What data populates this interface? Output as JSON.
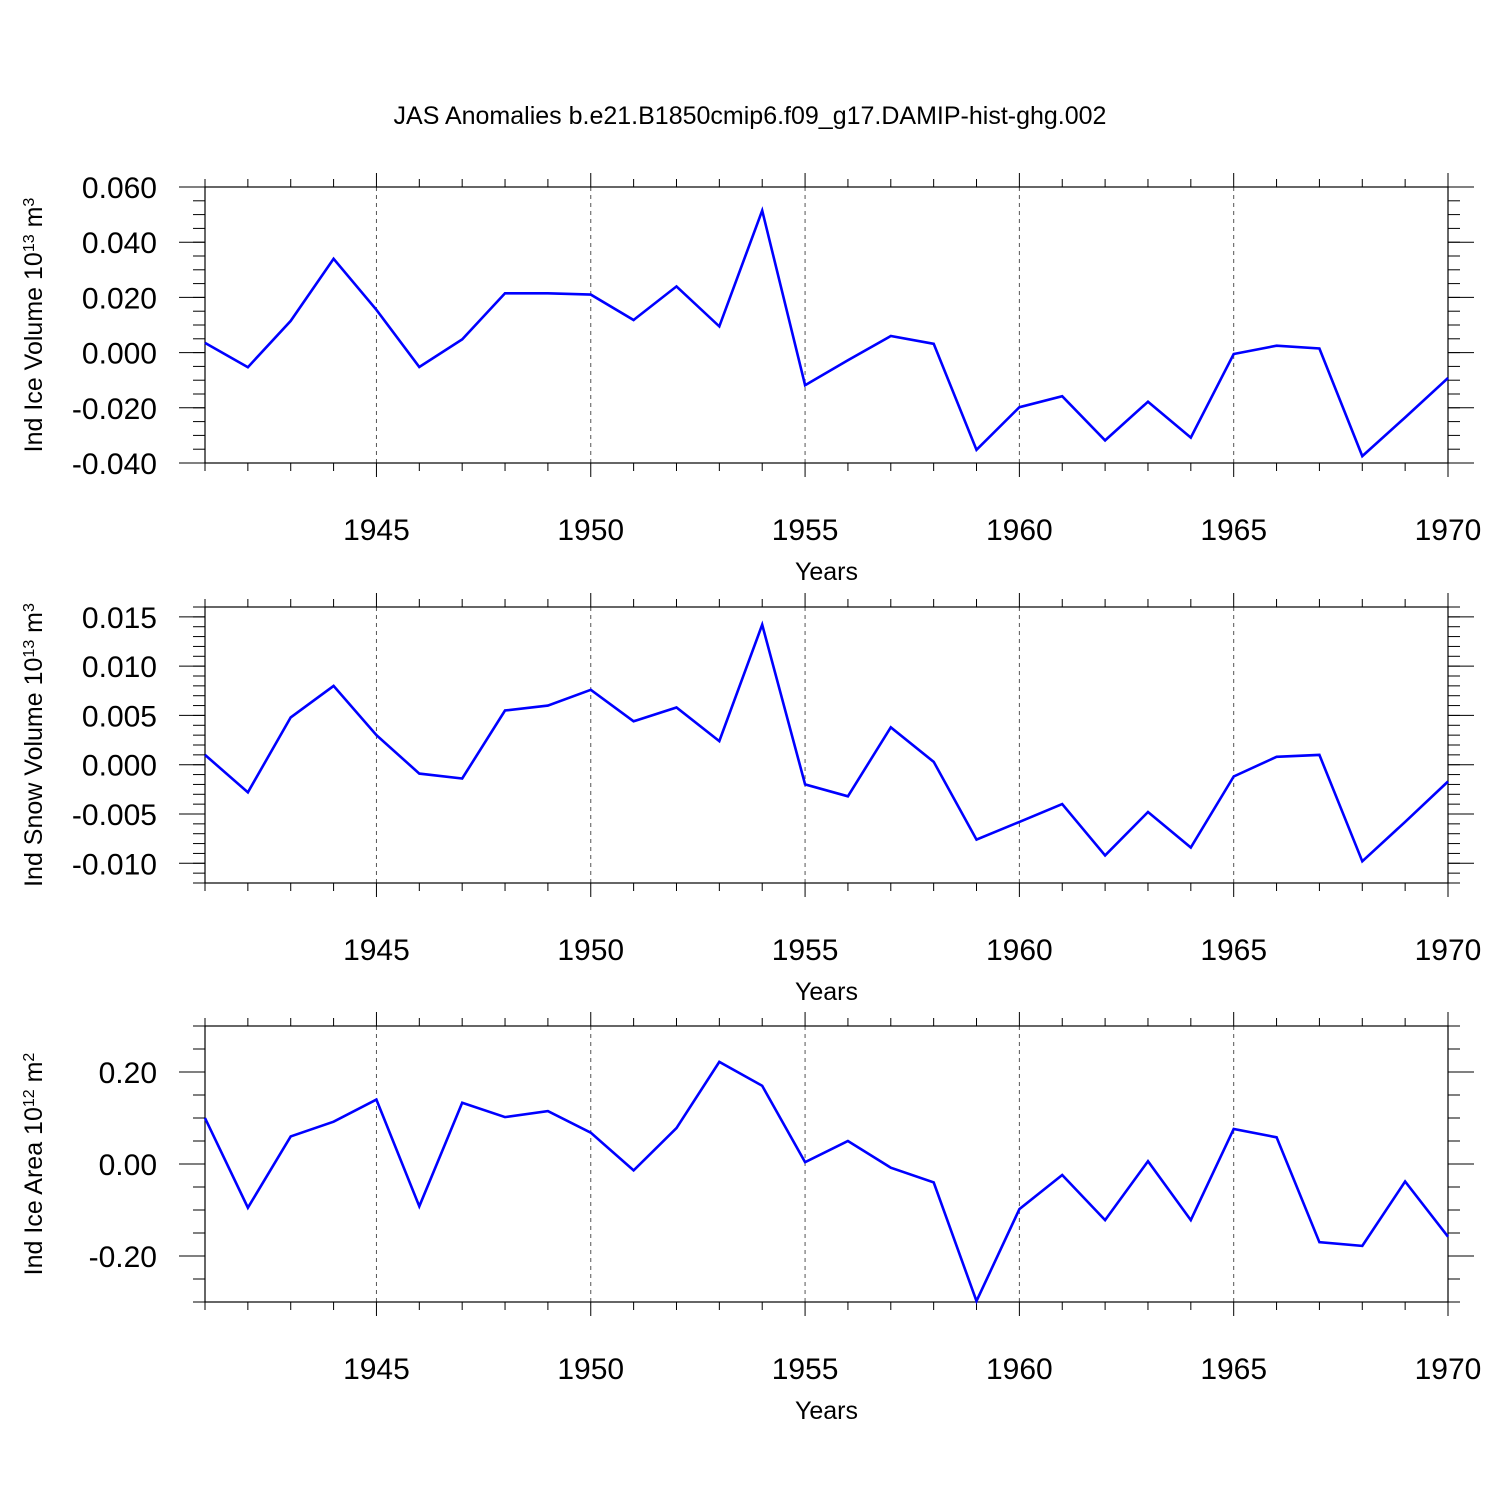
{
  "title": "JAS Anomalies b.e21.B1850cmip6.f09_g17.DAMIP-hist-ghg.002",
  "chart_data": [
    {
      "type": "line",
      "ylabel_main": "Ind Ice Volume 10",
      "ylabel_exp": "13",
      "ylabel_unit": "m",
      "ylabel_unit_exp": "3",
      "xlabel": "Years",
      "xlim": [
        1941,
        1970
      ],
      "ylim": [
        -0.04,
        0.06
      ],
      "yticks": [
        -0.04,
        -0.02,
        0.0,
        0.02,
        0.04,
        0.06
      ],
      "ytick_labels": [
        "-0.040",
        "-0.020",
        "0.000",
        "0.020",
        "0.040",
        "0.060"
      ],
      "ytick_minor_step": 0.005,
      "xticks": [
        1945,
        1950,
        1955,
        1960,
        1965,
        1970
      ],
      "xtick_labels": [
        "1945",
        "1950",
        "1955",
        "1960",
        "1965",
        "1970"
      ],
      "grid": "vertical dashed at major x ticks",
      "line_color": "#0000ff",
      "x": [
        1941,
        1942,
        1943,
        1944,
        1945,
        1946,
        1947,
        1948,
        1949,
        1950,
        1951,
        1952,
        1953,
        1954,
        1955,
        1956,
        1957,
        1958,
        1959,
        1960,
        1961,
        1962,
        1963,
        1964,
        1965,
        1966,
        1967,
        1968,
        1969,
        1970
      ],
      "values": [
        0.0035,
        -0.0053,
        0.0115,
        0.034,
        0.0155,
        -0.0052,
        0.0048,
        0.0215,
        0.0215,
        0.021,
        0.0118,
        0.024,
        0.0095,
        0.0515,
        -0.0118,
        -0.0028,
        0.006,
        0.0032,
        -0.0352,
        -0.0198,
        -0.0158,
        -0.0318,
        -0.0178,
        -0.0308,
        -0.0005,
        0.0025,
        0.0015,
        -0.0375,
        -0.0235,
        -0.0092
      ]
    },
    {
      "type": "line",
      "ylabel_main": "Ind Snow Volume 10",
      "ylabel_exp": "13",
      "ylabel_unit": "m",
      "ylabel_unit_exp": "3",
      "xlabel": "Years",
      "xlim": [
        1941,
        1970
      ],
      "ylim": [
        -0.012,
        0.016
      ],
      "yticks": [
        -0.01,
        -0.005,
        0.0,
        0.005,
        0.01,
        0.015
      ],
      "ytick_labels": [
        "-0.010",
        "-0.005",
        "0.000",
        "0.005",
        "0.010",
        "0.015"
      ],
      "ytick_minor_step": 0.001,
      "xticks": [
        1945,
        1950,
        1955,
        1960,
        1965,
        1970
      ],
      "xtick_labels": [
        "1945",
        "1950",
        "1955",
        "1960",
        "1965",
        "1970"
      ],
      "grid": "vertical dashed at major x ticks",
      "line_color": "#0000ff",
      "x": [
        1941,
        1942,
        1943,
        1944,
        1945,
        1946,
        1947,
        1948,
        1949,
        1950,
        1951,
        1952,
        1953,
        1954,
        1955,
        1956,
        1957,
        1958,
        1959,
        1960,
        1961,
        1962,
        1963,
        1964,
        1965,
        1966,
        1967,
        1968,
        1969,
        1970
      ],
      "values": [
        0.001,
        -0.0028,
        0.0048,
        0.008,
        0.003,
        -0.0009,
        -0.0014,
        0.0055,
        0.006,
        0.0076,
        0.0044,
        0.0058,
        0.0024,
        0.0142,
        -0.002,
        -0.0032,
        0.0038,
        0.0003,
        -0.0076,
        -0.0058,
        -0.004,
        -0.0092,
        -0.0048,
        -0.0084,
        -0.0012,
        0.0008,
        0.001,
        -0.0098,
        -0.0058,
        -0.0017
      ]
    },
    {
      "type": "line",
      "ylabel_main": "Ind Ice Area 10",
      "ylabel_exp": "12",
      "ylabel_unit": "m",
      "ylabel_unit_exp": "2",
      "xlabel": "Years",
      "xlim": [
        1941,
        1970
      ],
      "ylim": [
        -0.3,
        0.3
      ],
      "yticks": [
        -0.2,
        0.0,
        0.2
      ],
      "ytick_labels": [
        "-0.20",
        "0.00",
        "0.20"
      ],
      "ytick_minor_step": 0.05,
      "xticks": [
        1945,
        1950,
        1955,
        1960,
        1965,
        1970
      ],
      "xtick_labels": [
        "1945",
        "1950",
        "1955",
        "1960",
        "1965",
        "1970"
      ],
      "grid": "vertical dashed at major x ticks",
      "line_color": "#0000ff",
      "x": [
        1941,
        1942,
        1943,
        1944,
        1945,
        1946,
        1947,
        1948,
        1949,
        1950,
        1951,
        1952,
        1953,
        1954,
        1955,
        1956,
        1957,
        1958,
        1959,
        1960,
        1961,
        1962,
        1963,
        1964,
        1965,
        1966,
        1967,
        1968,
        1969,
        1970
      ],
      "values": [
        0.1,
        -0.095,
        0.06,
        0.092,
        0.14,
        -0.092,
        0.133,
        0.102,
        0.115,
        0.068,
        -0.014,
        0.078,
        0.222,
        0.17,
        0.004,
        0.05,
        -0.008,
        -0.04,
        -0.298,
        -0.098,
        -0.024,
        -0.122,
        0.006,
        -0.122,
        0.076,
        0.058,
        -0.17,
        -0.178,
        -0.038,
        -0.158
      ]
    }
  ]
}
